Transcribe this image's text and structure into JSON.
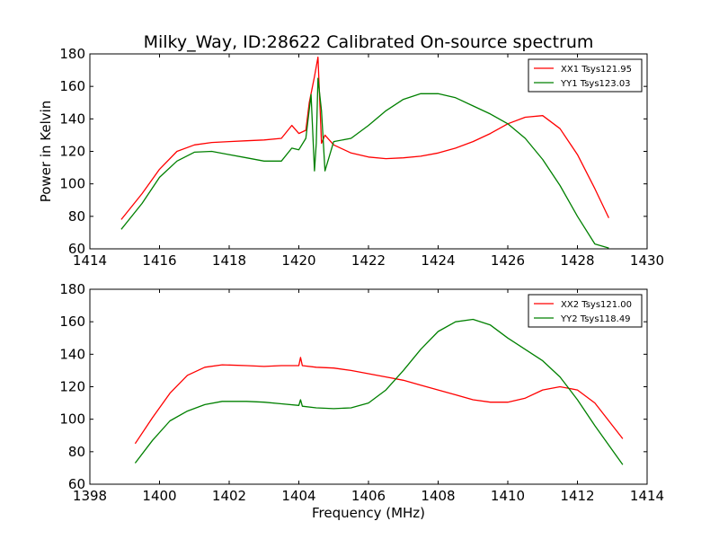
{
  "chart_data": [
    {
      "type": "line",
      "title": "Milky_Way, ID:28622 Calibrated On-source spectrum",
      "xlabel": "",
      "ylabel": "Power in Kelvin",
      "xlim": [
        1414,
        1430
      ],
      "ylim": [
        60,
        180
      ],
      "xticks": [
        1414,
        1416,
        1418,
        1420,
        1422,
        1424,
        1426,
        1428,
        1430
      ],
      "yticks": [
        60,
        80,
        100,
        120,
        140,
        160,
        180
      ],
      "grid": false,
      "legend_position": "top-right",
      "series": [
        {
          "name": "XX1 Tsys121.95",
          "color": "#ff0000",
          "x": [
            1414.9,
            1415.5,
            1416.0,
            1416.5,
            1417.0,
            1417.5,
            1418.0,
            1418.5,
            1419.0,
            1419.5,
            1419.8,
            1420.0,
            1420.2,
            1420.3,
            1420.45,
            1420.55,
            1420.65,
            1420.75,
            1421.0,
            1421.5,
            1422.0,
            1422.5,
            1423.0,
            1423.5,
            1424.0,
            1424.5,
            1425.0,
            1425.5,
            1426.0,
            1426.5,
            1427.0,
            1427.5,
            1428.0,
            1428.5,
            1428.9
          ],
          "y": [
            78,
            94,
            109,
            120,
            124,
            125.5,
            126,
            126.5,
            127,
            128,
            136,
            131,
            133,
            150,
            166,
            178,
            125,
            130,
            124,
            119,
            116.5,
            115.5,
            116,
            117,
            119,
            122,
            126,
            131,
            137,
            141,
            142,
            134,
            118,
            97,
            79
          ]
        },
        {
          "name": "YY1 Tsys123.03",
          "color": "#008000",
          "x": [
            1414.9,
            1415.5,
            1416.0,
            1416.5,
            1417.0,
            1417.5,
            1418.0,
            1418.5,
            1419.0,
            1419.5,
            1419.8,
            1420.0,
            1420.2,
            1420.35,
            1420.45,
            1420.5,
            1420.55,
            1420.65,
            1420.75,
            1421.0,
            1421.5,
            1422.0,
            1422.5,
            1423.0,
            1423.5,
            1424.0,
            1424.5,
            1425.0,
            1425.5,
            1426.0,
            1426.5,
            1427.0,
            1427.5,
            1428.0,
            1428.5,
            1428.9
          ],
          "y": [
            72,
            88,
            104,
            114,
            119.5,
            120,
            118,
            116,
            114,
            114,
            122,
            121,
            128,
            155,
            108,
            125,
            165,
            145,
            108,
            126,
            128,
            136,
            145,
            152,
            155.5,
            155.5,
            153,
            148,
            143,
            137,
            128,
            115,
            99,
            80,
            63,
            60.5
          ]
        }
      ]
    },
    {
      "type": "line",
      "title": "",
      "xlabel": "Frequency (MHz)",
      "ylabel": "",
      "xlim": [
        1398,
        1414
      ],
      "ylim": [
        60,
        180
      ],
      "xticks": [
        1398,
        1400,
        1402,
        1404,
        1406,
        1408,
        1410,
        1412,
        1414
      ],
      "yticks": [
        60,
        80,
        100,
        120,
        140,
        160,
        180
      ],
      "grid": false,
      "legend_position": "top-right",
      "series": [
        {
          "name": "XX2 Tsys121.00",
          "color": "#ff0000",
          "x": [
            1399.3,
            1399.8,
            1400.3,
            1400.8,
            1401.3,
            1401.8,
            1402.5,
            1403.0,
            1403.5,
            1404.0,
            1404.05,
            1404.1,
            1404.5,
            1405.0,
            1405.5,
            1406.0,
            1406.5,
            1407.0,
            1407.5,
            1408.0,
            1408.5,
            1409.0,
            1409.5,
            1410.0,
            1410.5,
            1411.0,
            1411.5,
            1412.0,
            1412.5,
            1413.3
          ],
          "y": [
            85,
            101,
            116,
            127,
            132,
            133.5,
            133,
            132.5,
            133,
            133,
            138,
            133,
            132,
            131.5,
            130,
            128,
            126,
            124,
            121,
            118,
            115,
            112,
            110.5,
            110.5,
            113,
            118,
            120,
            118,
            110,
            88
          ]
        },
        {
          "name": "YY2 Tsys118.49",
          "color": "#008000",
          "x": [
            1399.3,
            1399.8,
            1400.3,
            1400.8,
            1401.3,
            1401.8,
            1402.5,
            1403.0,
            1403.5,
            1404.0,
            1404.05,
            1404.1,
            1404.5,
            1405.0,
            1405.5,
            1406.0,
            1406.5,
            1407.0,
            1407.5,
            1408.0,
            1408.5,
            1409.0,
            1409.5,
            1410.0,
            1410.5,
            1411.0,
            1411.5,
            1412.0,
            1412.5,
            1413.3
          ],
          "y": [
            73,
            87,
            99,
            105,
            109,
            111,
            111,
            110.5,
            109.5,
            108.5,
            112,
            108,
            107,
            106.5,
            107,
            110,
            118,
            130,
            143,
            154,
            160,
            161.5,
            158,
            150,
            143,
            136,
            126,
            112,
            96,
            72
          ]
        }
      ]
    }
  ]
}
